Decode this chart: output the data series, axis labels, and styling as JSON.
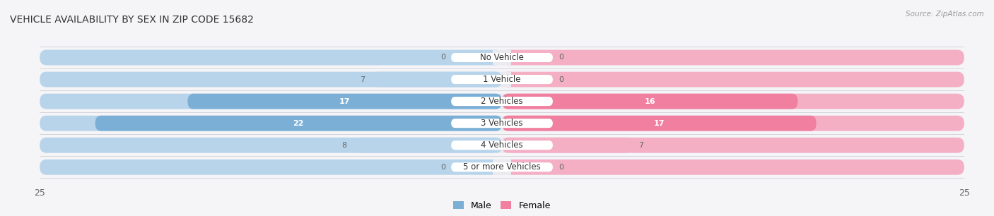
{
  "title": "VEHICLE AVAILABILITY BY SEX IN ZIP CODE 15682",
  "source": "Source: ZipAtlas.com",
  "categories": [
    "No Vehicle",
    "1 Vehicle",
    "2 Vehicles",
    "3 Vehicles",
    "4 Vehicles",
    "5 or more Vehicles"
  ],
  "male_values": [
    0,
    7,
    17,
    22,
    8,
    0
  ],
  "female_values": [
    0,
    0,
    16,
    17,
    7,
    0
  ],
  "male_color_dark": "#7bafd6",
  "male_color_light": "#b8d4ea",
  "female_color_dark": "#f07fa0",
  "female_color_light": "#f4afc5",
  "row_bg_color": "#eaeaef",
  "label_bg": "#ffffff",
  "xlim": 25,
  "legend_male": "Male",
  "legend_female": "Female",
  "background_color": "#f5f5f8",
  "text_dark": "#333333",
  "text_mid": "#666666",
  "label_fontsize": 8.5,
  "value_fontsize": 8,
  "title_fontsize": 10
}
